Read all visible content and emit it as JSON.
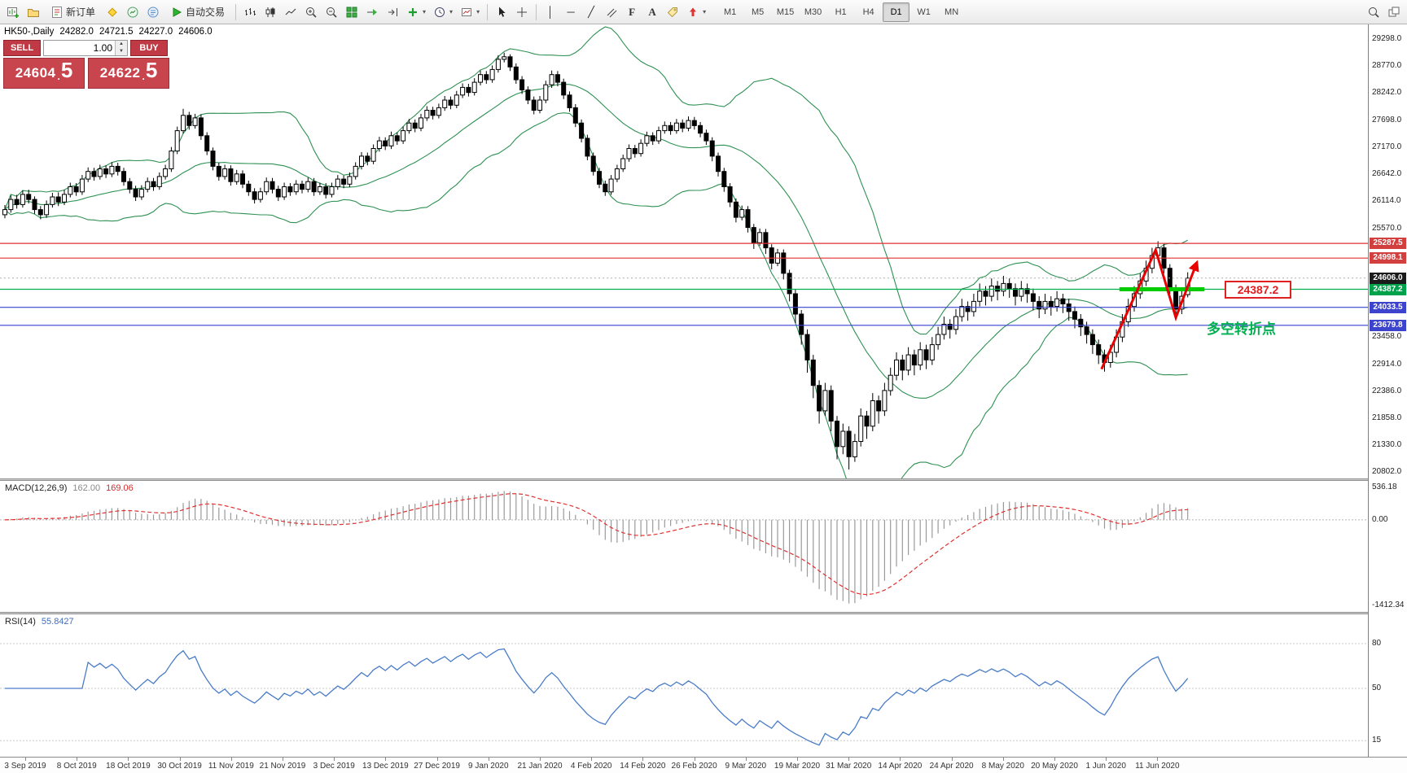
{
  "toolbar": {
    "new_order": "新订单",
    "autotrading": "自动交易",
    "timeframes": [
      "M1",
      "M5",
      "M15",
      "M30",
      "H1",
      "H4",
      "D1",
      "W1",
      "MN"
    ],
    "active_timeframe": "D1"
  },
  "quote": {
    "symbol_period": "HK50-,Daily",
    "open": "24282.0",
    "high": "24721.5",
    "low": "24227.0",
    "close": "24606.0"
  },
  "trade_panel": {
    "sell_label": "SELL",
    "buy_label": "BUY",
    "volume": "1.00",
    "sell_price": {
      "main": "24604",
      "sup": "5"
    },
    "buy_price": {
      "main": "24622",
      "sup": "5"
    }
  },
  "price_axis": {
    "labels": [
      29298.0,
      28770.0,
      28242.0,
      27698.0,
      27170.0,
      26642.0,
      26114.0,
      25570.0,
      23458.0,
      22914.0,
      22386.0,
      21858.0,
      21330.0,
      20802.0
    ]
  },
  "levels": [
    {
      "value": 25287.5,
      "label": "25287.5",
      "badge": "#d23f3f",
      "line_color": "#e03030",
      "style": "solid"
    },
    {
      "value": 24998.1,
      "label": "24998.1",
      "badge": "#d23f3f",
      "line_color": "#e03030",
      "style": "solid"
    },
    {
      "value": 24606.0,
      "label": "24606.0",
      "badge": "#1b1b1b",
      "line_color": "#b0b0b0",
      "style": "dotted"
    },
    {
      "value": 24387.2,
      "label": "24387.2",
      "badge": "#00a14b",
      "line_color": "#00b050",
      "style": "solid"
    },
    {
      "value": 24033.5,
      "label": "24033.5",
      "badge": "#3c43cc",
      "line_color": "#3a42d0",
      "style": "solid"
    },
    {
      "value": 23679.8,
      "label": "23679.8",
      "badge": "#3c43cc",
      "line_color": "#3a42d0",
      "style": "solid"
    }
  ],
  "annotations": {
    "turning_point_text": "多空转折点",
    "price_tag": "24387.2",
    "zigzag_points": [
      [
        184.5,
        22820
      ],
      [
        193.6,
        25160
      ],
      [
        197.0,
        23830
      ],
      [
        200.5,
        24900
      ]
    ],
    "highlight_line": {
      "price": 24387.2,
      "from_bar": 187.5,
      "to_bar": 201.8,
      "color": "#00cc00"
    }
  },
  "macd_panel": {
    "name": "MACD(12,26,9)",
    "value_main": "162.00",
    "value_signal": "169.06",
    "axis": [
      536.18,
      0.0,
      -1412.34
    ]
  },
  "rsi_panel": {
    "name": "RSI(14)",
    "value": "55.8427",
    "axis": [
      80,
      50,
      15
    ]
  },
  "time_axis": [
    "3 Sep 2019",
    "8 Oct 2019",
    "18 Oct 2019",
    "30 Oct 2019",
    "11 Nov 2019",
    "21 Nov 2019",
    "3 Dec 2019",
    "13 Dec 2019",
    "27 Dec 2019",
    "9 Jan 2020",
    "21 Jan 2020",
    "4 Feb 2020",
    "14 Feb 2020",
    "26 Feb 2020",
    "9 Mar 2020",
    "19 Mar 2020",
    "31 Mar 2020",
    "14 Apr 2020",
    "24 Apr 2020",
    "8 May 2020",
    "20 May 2020",
    "1 Jun 2020",
    "11 Jun 2020"
  ],
  "chart_data": {
    "type": "candlestick",
    "symbol": "HK50-",
    "period": "Daily",
    "price_min": 20802,
    "price_max": 29298,
    "bollinger": {
      "period": 20,
      "deviation": 2,
      "color": "#2e9153"
    },
    "macd": {
      "fast": 12,
      "slow": 26,
      "signal": 9,
      "range": [
        536.18,
        -1412.34
      ]
    },
    "rsi": {
      "period": 14
    },
    "candles": [
      [
        25850,
        26040,
        25780,
        25950
      ],
      [
        25950,
        26230,
        25890,
        26150
      ],
      [
        26150,
        26240,
        25970,
        26050
      ],
      [
        26050,
        26330,
        25990,
        26250
      ],
      [
        26250,
        26340,
        26070,
        26150
      ],
      [
        26150,
        26210,
        25870,
        25950
      ],
      [
        25950,
        26020,
        25760,
        25850
      ],
      [
        25850,
        26130,
        25790,
        26050
      ],
      [
        26050,
        26280,
        25990,
        26200
      ],
      [
        26200,
        26290,
        26020,
        26100
      ],
      [
        26100,
        26340,
        26040,
        26250
      ],
      [
        26250,
        26480,
        26190,
        26400
      ],
      [
        26400,
        26470,
        26220,
        26300
      ],
      [
        26300,
        26630,
        26240,
        26550
      ],
      [
        26550,
        26780,
        26490,
        26700
      ],
      [
        26700,
        26770,
        26520,
        26600
      ],
      [
        26600,
        26830,
        26540,
        26750
      ],
      [
        26750,
        26820,
        26570,
        26650
      ],
      [
        26650,
        26880,
        26590,
        26800
      ],
      [
        26800,
        26870,
        26620,
        26700
      ],
      [
        26700,
        26770,
        26420,
        26500
      ],
      [
        26500,
        26570,
        26270,
        26350
      ],
      [
        26350,
        26420,
        26120,
        26200
      ],
      [
        26200,
        26430,
        26140,
        26350
      ],
      [
        26350,
        26580,
        26290,
        26500
      ],
      [
        26500,
        26570,
        26320,
        26400
      ],
      [
        26400,
        26680,
        26340,
        26600
      ],
      [
        26600,
        26830,
        26540,
        26750
      ],
      [
        26750,
        27180,
        26690,
        27100
      ],
      [
        27100,
        27580,
        27040,
        27500
      ],
      [
        27500,
        27930,
        27440,
        27800
      ],
      [
        27800,
        27870,
        27520,
        27600
      ],
      [
        27600,
        27830,
        27540,
        27750
      ],
      [
        27750,
        27820,
        27320,
        27400
      ],
      [
        27400,
        27470,
        27020,
        27100
      ],
      [
        27100,
        27170,
        26720,
        26800
      ],
      [
        26800,
        26870,
        26520,
        26600
      ],
      [
        26600,
        26830,
        26540,
        26750
      ],
      [
        26750,
        26820,
        26420,
        26500
      ],
      [
        26500,
        26730,
        26440,
        26650
      ],
      [
        26650,
        26720,
        26370,
        26450
      ],
      [
        26450,
        26520,
        26220,
        26300
      ],
      [
        26300,
        26370,
        26070,
        26150
      ],
      [
        26150,
        26380,
        26090,
        26300
      ],
      [
        26300,
        26580,
        26240,
        26500
      ],
      [
        26500,
        26570,
        26270,
        26350
      ],
      [
        26350,
        26420,
        26120,
        26200
      ],
      [
        26200,
        26480,
        26140,
        26400
      ],
      [
        26400,
        26470,
        26220,
        26300
      ],
      [
        26300,
        26530,
        26240,
        26450
      ],
      [
        26450,
        26520,
        26270,
        26350
      ],
      [
        26350,
        26580,
        26290,
        26500
      ],
      [
        26500,
        26570,
        26220,
        26300
      ],
      [
        26300,
        26480,
        26240,
        26400
      ],
      [
        26400,
        26470,
        26170,
        26250
      ],
      [
        26250,
        26480,
        26190,
        26400
      ],
      [
        26400,
        26630,
        26340,
        26550
      ],
      [
        26550,
        26620,
        26370,
        26450
      ],
      [
        26450,
        26680,
        26390,
        26600
      ],
      [
        26600,
        26880,
        26540,
        26800
      ],
      [
        26800,
        27080,
        26740,
        27000
      ],
      [
        27000,
        27070,
        26820,
        26900
      ],
      [
        26900,
        27230,
        26840,
        27150
      ],
      [
        27150,
        27380,
        27090,
        27300
      ],
      [
        27300,
        27370,
        27120,
        27200
      ],
      [
        27200,
        27480,
        27140,
        27400
      ],
      [
        27400,
        27470,
        27220,
        27300
      ],
      [
        27300,
        27580,
        27240,
        27500
      ],
      [
        27500,
        27730,
        27440,
        27650
      ],
      [
        27650,
        27720,
        27470,
        27550
      ],
      [
        27550,
        27830,
        27490,
        27750
      ],
      [
        27750,
        27980,
        27690,
        27900
      ],
      [
        27900,
        27970,
        27720,
        27800
      ],
      [
        27800,
        28030,
        27740,
        27950
      ],
      [
        27950,
        28180,
        27890,
        28100
      ],
      [
        28100,
        28170,
        27920,
        28000
      ],
      [
        28000,
        28280,
        27940,
        28200
      ],
      [
        28200,
        28430,
        28140,
        28350
      ],
      [
        28350,
        28420,
        28170,
        28250
      ],
      [
        28250,
        28530,
        28190,
        28450
      ],
      [
        28450,
        28680,
        28390,
        28600
      ],
      [
        28600,
        28670,
        28420,
        28500
      ],
      [
        28500,
        28780,
        28440,
        28700
      ],
      [
        28700,
        28980,
        28640,
        28900
      ],
      [
        28900,
        29030,
        28840,
        28950
      ],
      [
        28950,
        29000,
        28670,
        28750
      ],
      [
        28750,
        28820,
        28420,
        28500
      ],
      [
        28500,
        28570,
        28220,
        28300
      ],
      [
        28300,
        28370,
        28020,
        28100
      ],
      [
        28100,
        28170,
        27820,
        27900
      ],
      [
        27900,
        28180,
        27840,
        28100
      ],
      [
        28100,
        28480,
        28040,
        28400
      ],
      [
        28400,
        28680,
        28340,
        28600
      ],
      [
        28600,
        28670,
        28370,
        28450
      ],
      [
        28450,
        28520,
        28120,
        28200
      ],
      [
        28200,
        28270,
        27870,
        27950
      ],
      [
        27950,
        28020,
        27570,
        27650
      ],
      [
        27650,
        27720,
        27270,
        27350
      ],
      [
        27350,
        27420,
        26920,
        27000
      ],
      [
        27000,
        27070,
        26620,
        26700
      ],
      [
        26700,
        26770,
        26370,
        26450
      ],
      [
        26450,
        26520,
        26220,
        26300
      ],
      [
        26300,
        26630,
        26240,
        26550
      ],
      [
        26550,
        26830,
        26490,
        26750
      ],
      [
        26750,
        27030,
        26690,
        26950
      ],
      [
        26950,
        27230,
        26890,
        27150
      ],
      [
        27150,
        27220,
        26970,
        27050
      ],
      [
        27050,
        27330,
        26990,
        27250
      ],
      [
        27250,
        27480,
        27190,
        27400
      ],
      [
        27400,
        27470,
        27220,
        27300
      ],
      [
        27300,
        27580,
        27240,
        27500
      ],
      [
        27500,
        27680,
        27440,
        27600
      ],
      [
        27600,
        27670,
        27420,
        27500
      ],
      [
        27500,
        27730,
        27440,
        27650
      ],
      [
        27650,
        27720,
        27470,
        27550
      ],
      [
        27550,
        27780,
        27490,
        27700
      ],
      [
        27700,
        27770,
        27520,
        27600
      ],
      [
        27600,
        27670,
        27370,
        27450
      ],
      [
        27450,
        27520,
        27220,
        27300
      ],
      [
        27300,
        27370,
        26900,
        27000
      ],
      [
        27000,
        27070,
        26600,
        26700
      ],
      [
        26700,
        26770,
        26300,
        26400
      ],
      [
        26400,
        26470,
        26000,
        26100
      ],
      [
        26100,
        26170,
        25700,
        25800
      ],
      [
        25800,
        26030,
        25740,
        25950
      ],
      [
        25950,
        26020,
        25500,
        25600
      ],
      [
        25600,
        25670,
        25180,
        25300
      ],
      [
        25300,
        25580,
        25240,
        25500
      ],
      [
        25500,
        25570,
        25080,
        25200
      ],
      [
        25200,
        25270,
        24780,
        24900
      ],
      [
        24900,
        25180,
        24840,
        25100
      ],
      [
        25100,
        25170,
        24580,
        24700
      ],
      [
        24700,
        24770,
        24150,
        24300
      ],
      [
        24300,
        24380,
        23720,
        23900
      ],
      [
        23900,
        23980,
        23300,
        23500
      ],
      [
        23500,
        23600,
        22750,
        23000
      ],
      [
        23000,
        23100,
        22250,
        22500
      ],
      [
        22500,
        22600,
        21750,
        22000
      ],
      [
        22000,
        22550,
        21900,
        22400
      ],
      [
        22400,
        22500,
        21600,
        21800
      ],
      [
        21800,
        21900,
        21050,
        21300
      ],
      [
        21300,
        21750,
        21150,
        21600
      ],
      [
        21600,
        21700,
        20850,
        21100
      ],
      [
        21100,
        21550,
        21000,
        21400
      ],
      [
        21400,
        22050,
        21300,
        21900
      ],
      [
        21900,
        22000,
        21450,
        21700
      ],
      [
        21700,
        22350,
        21600,
        22200
      ],
      [
        22200,
        22300,
        21750,
        22000
      ],
      [
        22000,
        22550,
        21900,
        22400
      ],
      [
        22400,
        22850,
        22300,
        22700
      ],
      [
        22700,
        23150,
        22600,
        23000
      ],
      [
        23000,
        23100,
        22600,
        22800
      ],
      [
        22800,
        23250,
        22700,
        23100
      ],
      [
        23100,
        23200,
        22700,
        22900
      ],
      [
        22900,
        23350,
        22800,
        23200
      ],
      [
        23200,
        23300,
        22820,
        23000
      ],
      [
        23000,
        23450,
        22900,
        23300
      ],
      [
        23300,
        23650,
        23200,
        23500
      ],
      [
        23500,
        23850,
        23400,
        23700
      ],
      [
        23700,
        23800,
        23420,
        23600
      ],
      [
        23600,
        24000,
        23500,
        23850
      ],
      [
        23850,
        24200,
        23750,
        24050
      ],
      [
        24050,
        24150,
        23770,
        23950
      ],
      [
        23950,
        24300,
        23850,
        24150
      ],
      [
        24150,
        24500,
        24050,
        24350
      ],
      [
        24350,
        24450,
        24070,
        24250
      ],
      [
        24250,
        24600,
        24150,
        24450
      ],
      [
        24450,
        24550,
        24170,
        24350
      ],
      [
        24350,
        24650,
        24250,
        24500
      ],
      [
        24500,
        24600,
        24220,
        24400
      ],
      [
        24400,
        24500,
        24070,
        24250
      ],
      [
        24250,
        24550,
        24150,
        24400
      ],
      [
        24400,
        24500,
        24120,
        24300
      ],
      [
        24300,
        24400,
        23970,
        24150
      ],
      [
        24150,
        24250,
        23820,
        24000
      ],
      [
        24000,
        24300,
        23900,
        24150
      ],
      [
        24150,
        24250,
        23870,
        24050
      ],
      [
        24050,
        24350,
        23950,
        24200
      ],
      [
        24200,
        24300,
        23920,
        24100
      ],
      [
        24100,
        24200,
        23770,
        23950
      ],
      [
        23950,
        24050,
        23620,
        23800
      ],
      [
        23800,
        23900,
        23470,
        23650
      ],
      [
        23650,
        23750,
        23320,
        23500
      ],
      [
        23500,
        23600,
        23120,
        23300
      ],
      [
        23300,
        23400,
        22920,
        23100
      ],
      [
        23100,
        23200,
        22770,
        22950
      ],
      [
        22950,
        23300,
        22850,
        23150
      ],
      [
        23150,
        23600,
        23050,
        23450
      ],
      [
        23450,
        23900,
        23350,
        23750
      ],
      [
        23750,
        24200,
        23650,
        24050
      ],
      [
        24050,
        24450,
        23950,
        24300
      ],
      [
        24300,
        24700,
        24200,
        24550
      ],
      [
        24550,
        24950,
        24450,
        24800
      ],
      [
        24800,
        25200,
        24700,
        25050
      ],
      [
        25050,
        25330,
        24950,
        25200
      ],
      [
        25200,
        25280,
        24700,
        24800
      ],
      [
        24800,
        24880,
        24300,
        24400
      ],
      [
        24400,
        24480,
        23880,
        24000
      ],
      [
        24000,
        24380,
        23900,
        24250
      ],
      [
        24282,
        24721,
        24227,
        24606
      ]
    ]
  }
}
